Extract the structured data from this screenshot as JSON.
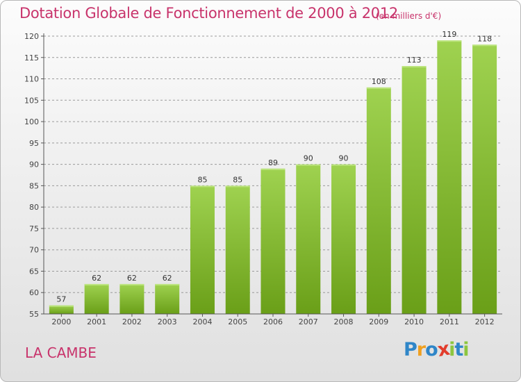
{
  "header": {
    "title": "Dotation Globale de Fonctionnement de 2000 à 2012",
    "unit": "(en milliers d'€)"
  },
  "footer": {
    "commune": "LA CAMBE",
    "logo_text": "Proxiti",
    "logo_letters": [
      {
        "char": "P",
        "color": "#2f86c8"
      },
      {
        "char": "r",
        "color": "#f0a020"
      },
      {
        "char": "o",
        "color": "#2f86c8"
      },
      {
        "char": "x",
        "color": "#e23c2c"
      },
      {
        "char": "i",
        "color": "#8cc63f"
      },
      {
        "char": "t",
        "color": "#2f86c8"
      },
      {
        "char": "i",
        "color": "#8cc63f"
      }
    ]
  },
  "colors": {
    "title": "#c8336b",
    "bar_light": "#9fd250",
    "bar_dark": "#6a9f18",
    "axis": "#555555",
    "grid": "#9a9a9a"
  },
  "chart_data": {
    "type": "bar",
    "categories": [
      "2000",
      "2001",
      "2002",
      "2003",
      "2004",
      "2005",
      "2006",
      "2007",
      "2008",
      "2009",
      "2010",
      "2011",
      "2012"
    ],
    "values": [
      57,
      62,
      62,
      62,
      85,
      85,
      89,
      90,
      90,
      108,
      113,
      119,
      118
    ],
    "title": "Dotation Globale de Fonctionnement de 2000 à 2012",
    "subtitle": "(en milliers d'€)",
    "xlabel": "",
    "ylabel": "",
    "ylim": [
      55,
      120
    ],
    "yticks": [
      55,
      60,
      65,
      70,
      75,
      80,
      85,
      90,
      95,
      100,
      105,
      110,
      115,
      120
    ],
    "grid": "dashed horizontal at ticks",
    "legend": "none"
  }
}
